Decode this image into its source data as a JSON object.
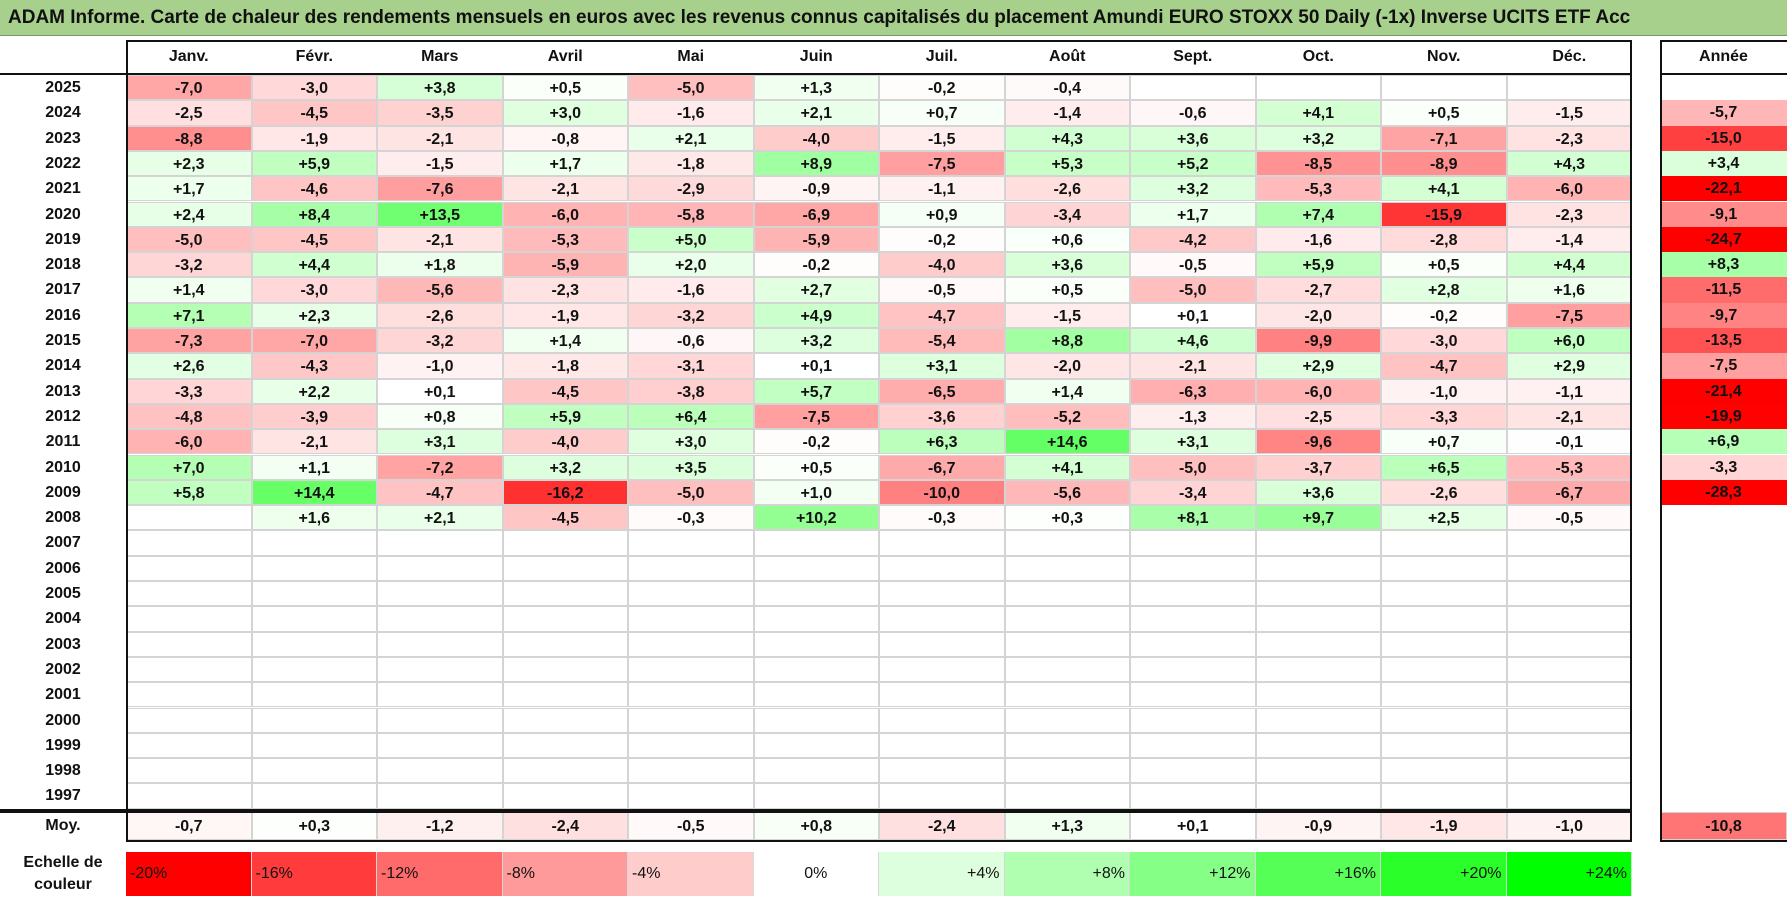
{
  "title": "ADAM Informe. Carte de chaleur des rendements mensuels en euros avec les revenus connus capitalisés du placement Amundi EURO STOXX 50 Daily (-1x) Inverse UCITS ETF Acc",
  "chart_data": {
    "type": "heatmap",
    "months": [
      "Janv.",
      "Févr.",
      "Mars",
      "Avril",
      "Mai",
      "Juin",
      "Juil.",
      "Août",
      "Sept.",
      "Oct.",
      "Nov.",
      "Déc."
    ],
    "year_header": "Année",
    "rows": [
      {
        "year": "2025",
        "values": [
          -7.0,
          -3.0,
          3.8,
          0.5,
          -5.0,
          1.3,
          -0.2,
          -0.4,
          null,
          null,
          null,
          null
        ],
        "annual": null
      },
      {
        "year": "2024",
        "values": [
          -2.5,
          -4.5,
          -3.5,
          3.0,
          -1.6,
          2.1,
          0.7,
          -1.4,
          -0.6,
          4.1,
          0.5,
          -1.5
        ],
        "annual": -5.7
      },
      {
        "year": "2023",
        "values": [
          -8.8,
          -1.9,
          -2.1,
          -0.8,
          2.1,
          -4.0,
          -1.5,
          4.3,
          3.6,
          3.2,
          -7.1,
          -2.3
        ],
        "annual": -15.0
      },
      {
        "year": "2022",
        "values": [
          2.3,
          5.9,
          -1.5,
          1.7,
          -1.8,
          8.9,
          -7.5,
          5.3,
          5.2,
          -8.5,
          -8.9,
          4.3
        ],
        "annual": 3.4
      },
      {
        "year": "2021",
        "values": [
          1.7,
          -4.6,
          -7.6,
          -2.1,
          -2.9,
          -0.9,
          -1.1,
          -2.6,
          3.2,
          -5.3,
          4.1,
          -6.0
        ],
        "annual": -22.1
      },
      {
        "year": "2020",
        "values": [
          2.4,
          8.4,
          13.5,
          -6.0,
          -5.8,
          -6.9,
          0.9,
          -3.4,
          1.7,
          7.4,
          -15.9,
          -2.3
        ],
        "annual": -9.1
      },
      {
        "year": "2019",
        "values": [
          -5.0,
          -4.5,
          -2.1,
          -5.3,
          5.0,
          -5.9,
          -0.2,
          0.6,
          -4.2,
          -1.6,
          -2.8,
          -1.4
        ],
        "annual": -24.7
      },
      {
        "year": "2018",
        "values": [
          -3.2,
          4.4,
          1.8,
          -5.9,
          2.0,
          -0.2,
          -4.0,
          3.6,
          -0.5,
          5.9,
          0.5,
          4.4
        ],
        "annual": 8.3
      },
      {
        "year": "2017",
        "values": [
          1.4,
          -3.0,
          -5.6,
          -2.3,
          -1.6,
          2.7,
          -0.5,
          0.5,
          -5.0,
          -2.7,
          2.8,
          1.6
        ],
        "annual": -11.5
      },
      {
        "year": "2016",
        "values": [
          7.1,
          2.3,
          -2.6,
          -1.9,
          -3.2,
          4.9,
          -4.7,
          -1.5,
          0.1,
          -2.0,
          -0.2,
          -7.5
        ],
        "annual": -9.7
      },
      {
        "year": "2015",
        "values": [
          -7.3,
          -7.0,
          -3.2,
          1.4,
          -0.6,
          3.2,
          -5.4,
          8.8,
          4.6,
          -9.9,
          -3.0,
          6.0
        ],
        "annual": -13.5
      },
      {
        "year": "2014",
        "values": [
          2.6,
          -4.3,
          -1.0,
          -1.8,
          -3.1,
          0.1,
          3.1,
          -2.0,
          -2.1,
          2.9,
          -4.7,
          2.9
        ],
        "annual": -7.5
      },
      {
        "year": "2013",
        "values": [
          -3.3,
          2.2,
          0.1,
          -4.5,
          -3.8,
          5.7,
          -6.5,
          1.4,
          -6.3,
          -6.0,
          -1.0,
          -1.1
        ],
        "annual": -21.4
      },
      {
        "year": "2012",
        "values": [
          -4.8,
          -3.9,
          0.8,
          5.9,
          6.4,
          -7.5,
          -3.6,
          -5.2,
          -1.3,
          -2.5,
          -3.3,
          -2.1
        ],
        "annual": -19.9
      },
      {
        "year": "2011",
        "values": [
          -6.0,
          -2.1,
          3.1,
          -4.0,
          3.0,
          -0.2,
          6.3,
          14.6,
          3.1,
          -9.6,
          0.7,
          -0.1
        ],
        "annual": 6.9
      },
      {
        "year": "2010",
        "values": [
          7.0,
          1.1,
          -7.2,
          3.2,
          3.5,
          0.5,
          -6.7,
          4.1,
          -5.0,
          -3.7,
          6.5,
          -5.3
        ],
        "annual": -3.3
      },
      {
        "year": "2009",
        "values": [
          5.8,
          14.4,
          -4.7,
          -16.2,
          -5.0,
          1.0,
          -10.0,
          -5.6,
          -3.4,
          3.6,
          -2.6,
          -6.7
        ],
        "annual": -28.3
      },
      {
        "year": "2008",
        "values": [
          null,
          1.6,
          2.1,
          -4.5,
          -0.3,
          10.2,
          -0.3,
          0.3,
          8.1,
          9.7,
          2.5,
          -0.5
        ],
        "annual": null
      },
      {
        "year": "2007",
        "values": [
          null,
          null,
          null,
          null,
          null,
          null,
          null,
          null,
          null,
          null,
          null,
          null
        ],
        "annual": null
      },
      {
        "year": "2006",
        "values": [
          null,
          null,
          null,
          null,
          null,
          null,
          null,
          null,
          null,
          null,
          null,
          null
        ],
        "annual": null
      },
      {
        "year": "2005",
        "values": [
          null,
          null,
          null,
          null,
          null,
          null,
          null,
          null,
          null,
          null,
          null,
          null
        ],
        "annual": null
      },
      {
        "year": "2004",
        "values": [
          null,
          null,
          null,
          null,
          null,
          null,
          null,
          null,
          null,
          null,
          null,
          null
        ],
        "annual": null
      },
      {
        "year": "2003",
        "values": [
          null,
          null,
          null,
          null,
          null,
          null,
          null,
          null,
          null,
          null,
          null,
          null
        ],
        "annual": null
      },
      {
        "year": "2002",
        "values": [
          null,
          null,
          null,
          null,
          null,
          null,
          null,
          null,
          null,
          null,
          null,
          null
        ],
        "annual": null
      },
      {
        "year": "2001",
        "values": [
          null,
          null,
          null,
          null,
          null,
          null,
          null,
          null,
          null,
          null,
          null,
          null
        ],
        "annual": null
      },
      {
        "year": "2000",
        "values": [
          null,
          null,
          null,
          null,
          null,
          null,
          null,
          null,
          null,
          null,
          null,
          null
        ],
        "annual": null
      },
      {
        "year": "1999",
        "values": [
          null,
          null,
          null,
          null,
          null,
          null,
          null,
          null,
          null,
          null,
          null,
          null
        ],
        "annual": null
      },
      {
        "year": "1998",
        "values": [
          null,
          null,
          null,
          null,
          null,
          null,
          null,
          null,
          null,
          null,
          null,
          null
        ],
        "annual": null
      },
      {
        "year": "1997",
        "values": [
          null,
          null,
          null,
          null,
          null,
          null,
          null,
          null,
          null,
          null,
          null,
          null
        ],
        "annual": null
      }
    ],
    "average": {
      "label": "Moy.",
      "values": [
        -0.7,
        0.3,
        -1.2,
        -2.4,
        -0.5,
        0.8,
        -2.4,
        1.3,
        0.1,
        -0.9,
        -1.9,
        -1.0
      ],
      "annual": -10.8
    },
    "scale": {
      "label": "Echelle de couleur",
      "items": [
        {
          "label": "-20%",
          "value": -20,
          "color": "#ff0000"
        },
        {
          "label": "-16%",
          "value": -16,
          "color": "#ff3b3b"
        },
        {
          "label": "-12%",
          "value": -12,
          "color": "#ff6b6b"
        },
        {
          "label": "-8%",
          "value": -8,
          "color": "#ff9a9a"
        },
        {
          "label": "-4%",
          "value": -4,
          "color": "#ffcccc"
        },
        {
          "label": "0%",
          "value": 0,
          "color": "#ffffff"
        },
        {
          "label": "+4%",
          "value": 4,
          "color": "#ddffdd"
        },
        {
          "label": "+8%",
          "value": 8,
          "color": "#b0ffb0"
        },
        {
          "label": "+12%",
          "value": 12,
          "color": "#86ff86"
        },
        {
          "label": "+16%",
          "value": 16,
          "color": "#55ff55"
        },
        {
          "label": "+20%",
          "value": 20,
          "color": "#2aff2a"
        },
        {
          "label": "+24%",
          "value": 24,
          "color": "#00ff00"
        }
      ]
    }
  }
}
